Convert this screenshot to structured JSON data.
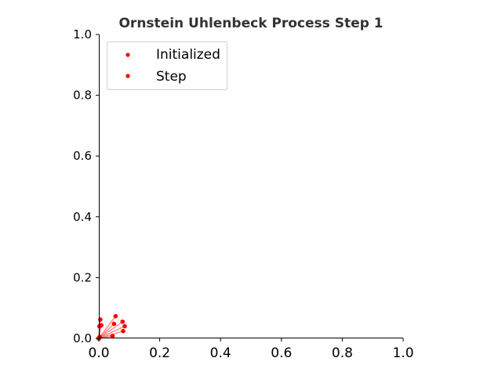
{
  "chart_data": {
    "type": "scatter",
    "title": "Ornstein Uhlenbeck Process Step 1",
    "xlabel": "",
    "ylabel": "",
    "xlim": [
      0.0,
      1.0
    ],
    "ylim": [
      0.0,
      1.0
    ],
    "x_ticks": [
      "0.0",
      "0.2",
      "0.4",
      "0.6",
      "0.8",
      "1.0"
    ],
    "y_ticks": [
      "0.0",
      "0.2",
      "0.4",
      "0.6",
      "0.8",
      "1.0"
    ],
    "grid": false,
    "legend_position": "upper-left",
    "series": [
      {
        "name": "Initialized",
        "color": "#ff0000",
        "points": [
          [
            0.0,
            0.0
          ],
          [
            0.0,
            0.0
          ],
          [
            0.0,
            0.0
          ],
          [
            0.0,
            0.0
          ],
          [
            0.0,
            0.0
          ],
          [
            0.0,
            0.0
          ],
          [
            0.0,
            0.0
          ],
          [
            0.0,
            0.0
          ],
          [
            0.0,
            0.0
          ],
          [
            0.0,
            0.0
          ]
        ]
      },
      {
        "name": "Step",
        "color": "#ff0000",
        "points": [
          [
            0.055,
            0.073
          ],
          [
            0.078,
            0.055
          ],
          [
            0.085,
            0.04
          ],
          [
            0.08,
            0.024
          ],
          [
            0.05,
            0.048
          ],
          [
            0.005,
            0.062
          ],
          [
            0.008,
            0.043
          ],
          [
            0.002,
            0.04
          ],
          [
            0.045,
            0.008
          ],
          [
            0.003,
            0.005
          ]
        ]
      }
    ],
    "trajectories_color": "#ff6666"
  }
}
